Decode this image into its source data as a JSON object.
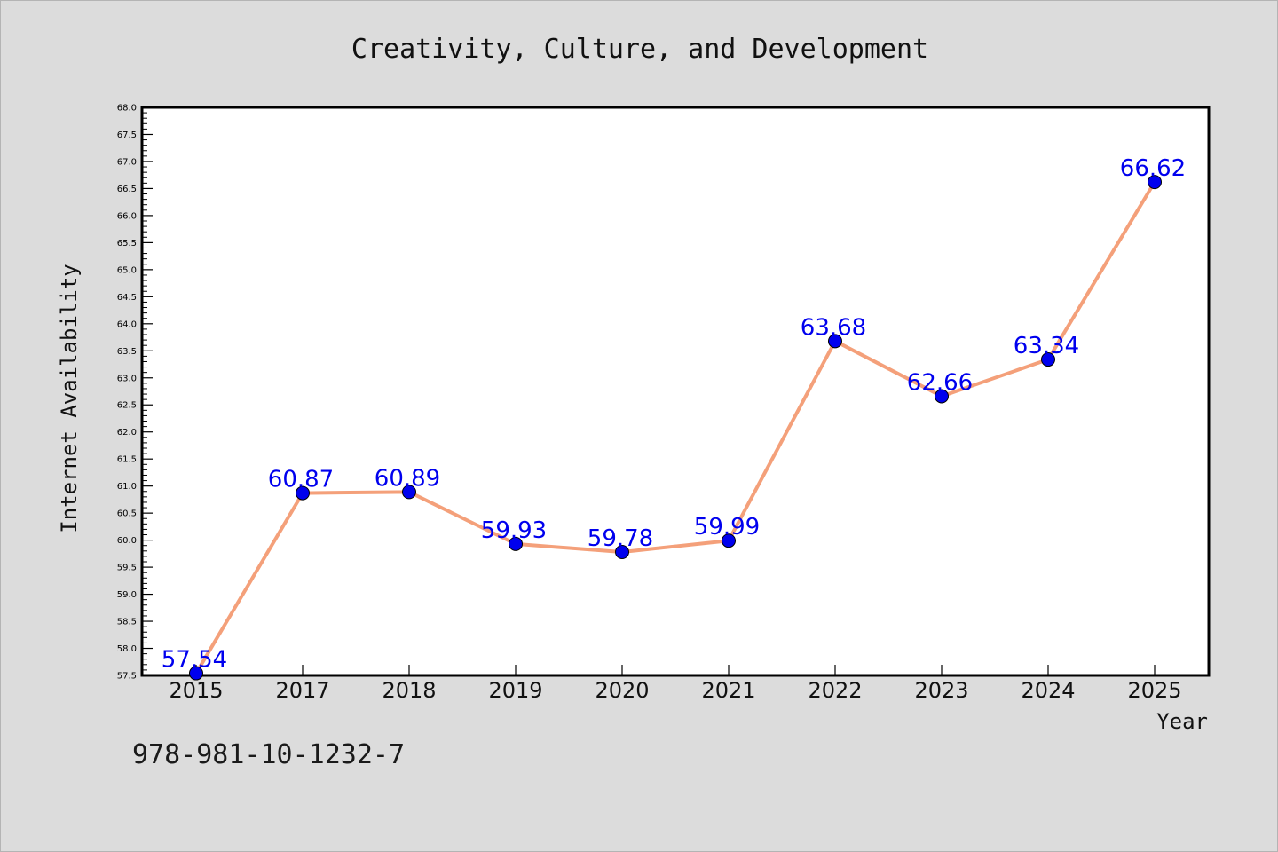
{
  "chart_data": {
    "type": "line",
    "title": "Creativity, Culture, and Development",
    "xlabel": "Year",
    "ylabel": "Internet Availability",
    "categories": [
      "2015",
      "2017",
      "2018",
      "2019",
      "2020",
      "2021",
      "2022",
      "2023",
      "2024",
      "2025"
    ],
    "series": [
      {
        "values": [
          57.54,
          60.87,
          60.89,
          59.93,
          59.78,
          59.99,
          63.68,
          62.66,
          63.34,
          66.62
        ],
        "line_color": "#f4a07a",
        "marker_color": "#0000ee",
        "label_color": "#0000ee"
      }
    ],
    "data_labels": [
      "57.54",
      "60.87",
      "60.89",
      "59.93",
      "59.78",
      "59.99",
      "63.68",
      "62.66",
      "63.34",
      "66.62"
    ],
    "ylim": [
      57.5,
      68.0
    ],
    "yticks": [
      "57.5",
      "58.0",
      "58.5",
      "59.0",
      "59.5",
      "60.0",
      "60.5",
      "61.0",
      "61.5",
      "62.0",
      "62.5",
      "63.0",
      "63.5",
      "64.0",
      "64.5",
      "65.0",
      "65.5",
      "66.0",
      "66.5",
      "67.0",
      "67.5",
      "68.0"
    ],
    "grid": false,
    "legend": "none"
  },
  "footnote": "978-981-10-1232-7",
  "colors": {
    "background": "#dcdcdc",
    "plot_background": "#ffffff",
    "axis": "#000000"
  }
}
